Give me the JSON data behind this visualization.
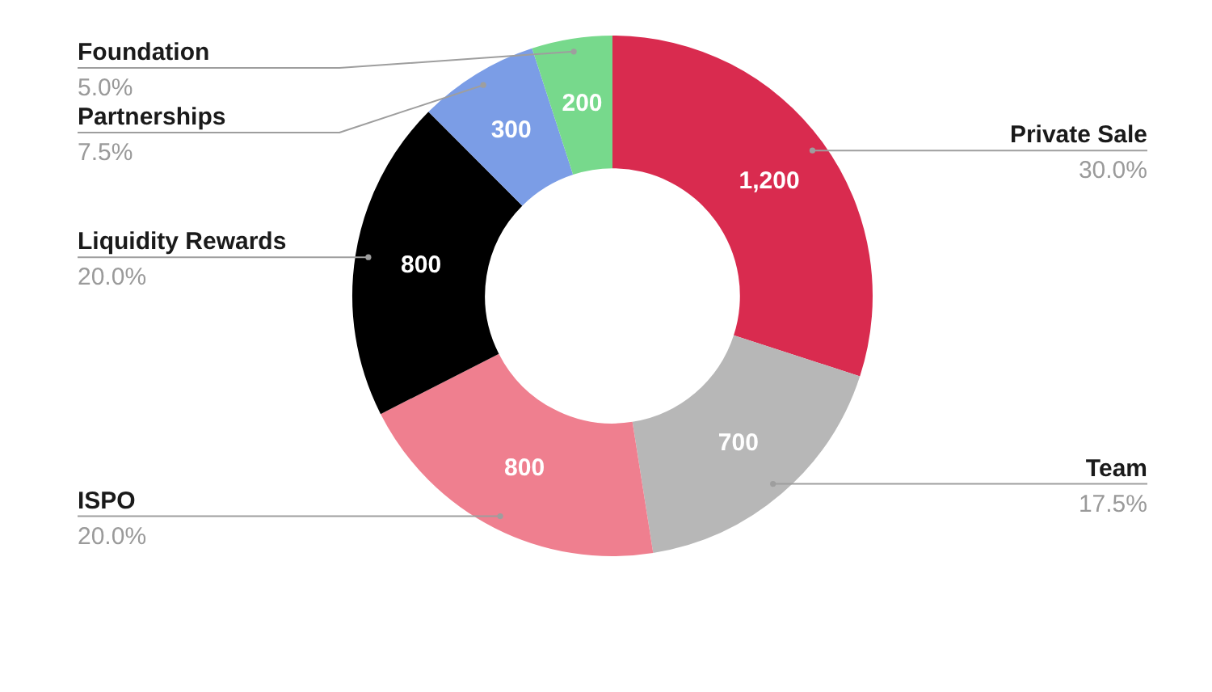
{
  "chart_data": {
    "type": "donut",
    "categories": [
      "Private Sale",
      "Team",
      "ISPO",
      "Liquidity Rewards",
      "Partnerships",
      "Foundation"
    ],
    "values": [
      1200,
      700,
      800,
      800,
      300,
      200
    ],
    "colors": [
      "#d92b4f",
      "#b7b7b7",
      "#ef7f8f",
      "#000000",
      "#7b9de6",
      "#77d98c"
    ],
    "value_labels": [
      "1,200",
      "700",
      "800",
      "800",
      "300",
      "200"
    ],
    "annotations": [
      "30.0%",
      "17.5%",
      "20.0%",
      "20.0%",
      "7.5%",
      "5.0%"
    ]
  }
}
